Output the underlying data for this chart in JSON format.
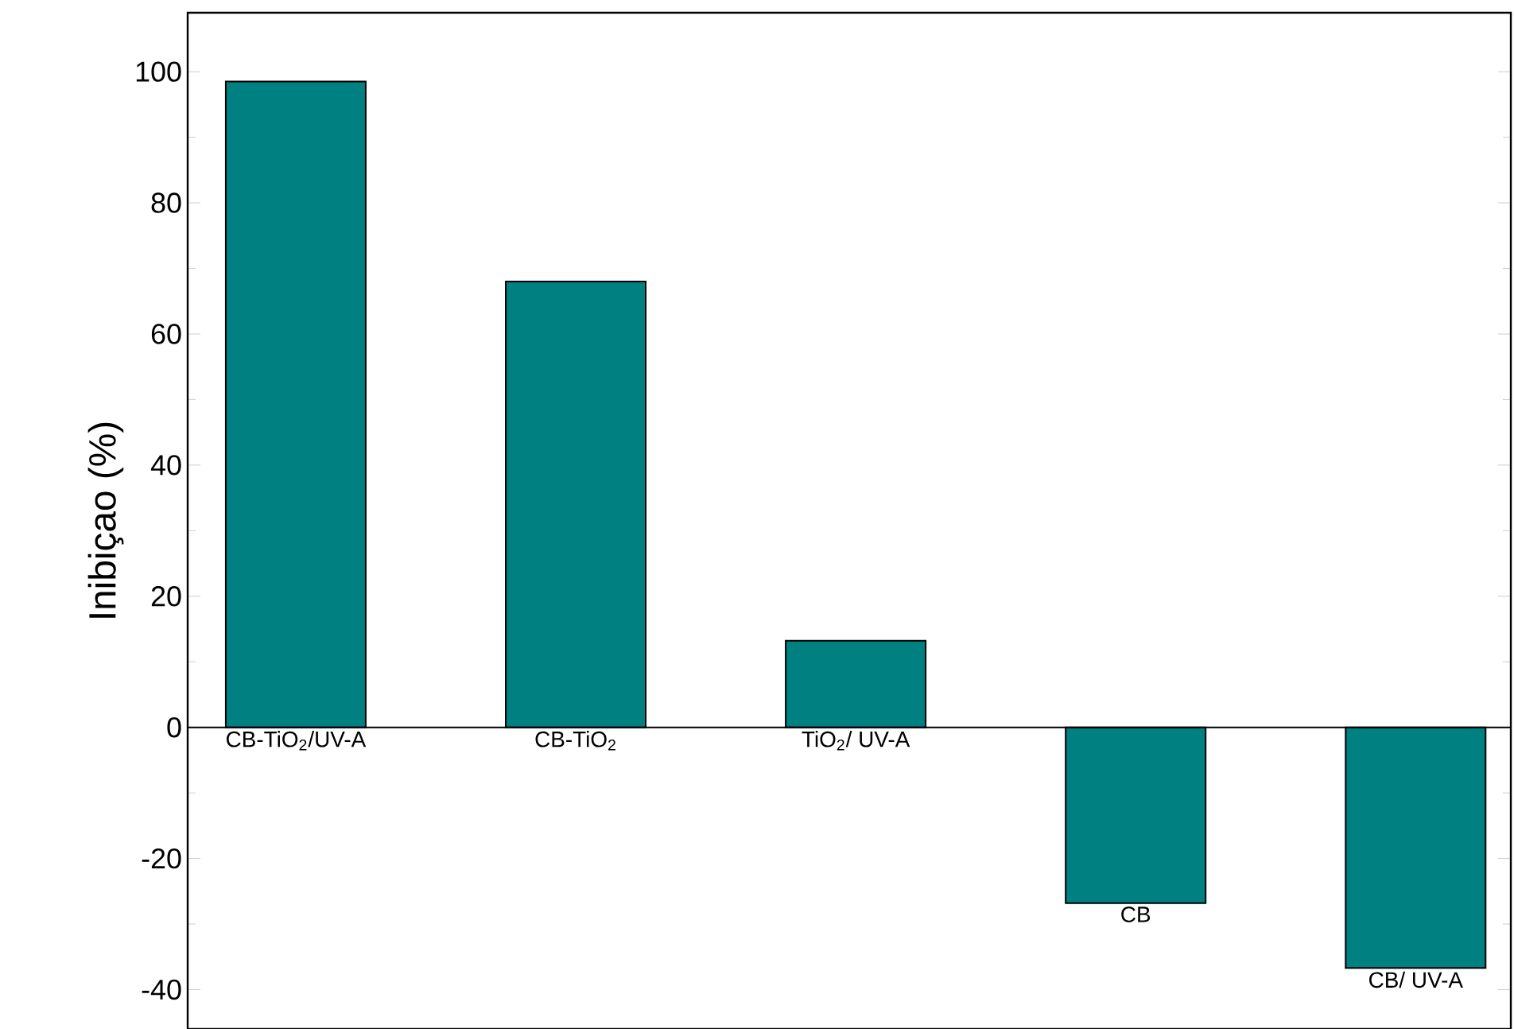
{
  "chart_data": {
    "type": "bar",
    "ylabel": "Inibiçao (%)",
    "categories": [
      "CB-TiO$_{2}$/UV-A",
      "CB-TiO$_{2}$",
      "TiO$_{2}$/ UV-A",
      "CB",
      "CB/ UV-A"
    ],
    "values": [
      98.5,
      68,
      13.2,
      -26.8,
      -36.7
    ],
    "color": "#008080",
    "ylim": [
      -46,
      109
    ],
    "yticks": [
      -40,
      -20,
      0,
      20,
      40,
      60,
      80,
      100
    ],
    "grid": false
  }
}
